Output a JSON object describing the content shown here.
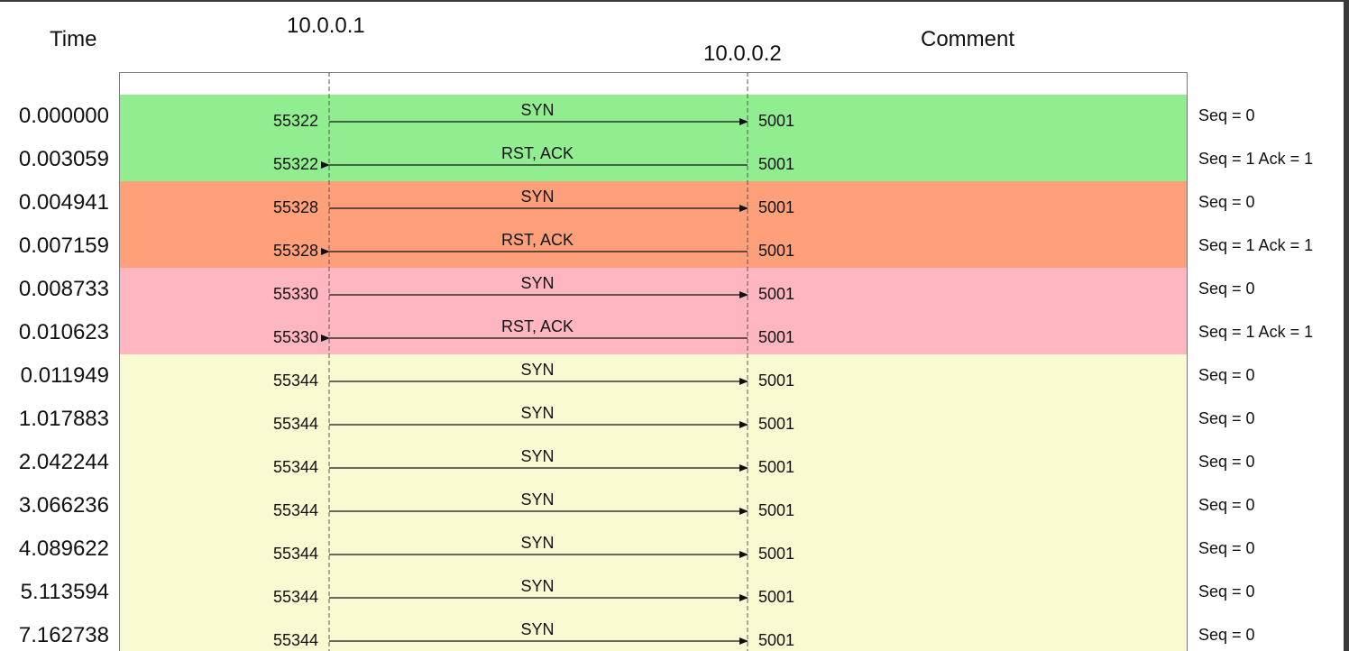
{
  "header": {
    "time_label": "Time",
    "host_a": "10.0.0.1",
    "host_b": "10.0.0.2",
    "comment_label": "Comment"
  },
  "colors": {
    "group_green": "#90ee90",
    "group_orange": "#ffa07a",
    "group_pink": "#ffb6c1",
    "group_yellow": "#fafad2"
  },
  "groups": [
    {
      "color": "#90ee90",
      "first_row": 0,
      "row_count": 2
    },
    {
      "color": "#ffa07a",
      "first_row": 2,
      "row_count": 2
    },
    {
      "color": "#ffb6c1",
      "first_row": 4,
      "row_count": 2
    },
    {
      "color": "#fafad2",
      "first_row": 6,
      "row_count": 7
    }
  ],
  "rows": [
    {
      "time": "0.000000",
      "src_port": "55322",
      "dst_port": "5001",
      "flags": "SYN",
      "direction": "right",
      "comment": "Seq = 0"
    },
    {
      "time": "0.003059",
      "src_port": "55322",
      "dst_port": "5001",
      "flags": "RST, ACK",
      "direction": "left",
      "comment": "Seq = 1 Ack = 1"
    },
    {
      "time": "0.004941",
      "src_port": "55328",
      "dst_port": "5001",
      "flags": "SYN",
      "direction": "right",
      "comment": "Seq = 0"
    },
    {
      "time": "0.007159",
      "src_port": "55328",
      "dst_port": "5001",
      "flags": "RST, ACK",
      "direction": "left",
      "comment": "Seq = 1 Ack = 1"
    },
    {
      "time": "0.008733",
      "src_port": "55330",
      "dst_port": "5001",
      "flags": "SYN",
      "direction": "right",
      "comment": "Seq = 0"
    },
    {
      "time": "0.010623",
      "src_port": "55330",
      "dst_port": "5001",
      "flags": "RST, ACK",
      "direction": "left",
      "comment": "Seq = 1 Ack = 1"
    },
    {
      "time": "0.011949",
      "src_port": "55344",
      "dst_port": "5001",
      "flags": "SYN",
      "direction": "right",
      "comment": "Seq = 0"
    },
    {
      "time": "1.017883",
      "src_port": "55344",
      "dst_port": "5001",
      "flags": "SYN",
      "direction": "right",
      "comment": "Seq = 0"
    },
    {
      "time": "2.042244",
      "src_port": "55344",
      "dst_port": "5001",
      "flags": "SYN",
      "direction": "right",
      "comment": "Seq = 0"
    },
    {
      "time": "3.066236",
      "src_port": "55344",
      "dst_port": "5001",
      "flags": "SYN",
      "direction": "right",
      "comment": "Seq = 0"
    },
    {
      "time": "4.089622",
      "src_port": "55344",
      "dst_port": "5001",
      "flags": "SYN",
      "direction": "right",
      "comment": "Seq = 0"
    },
    {
      "time": "5.113594",
      "src_port": "55344",
      "dst_port": "5001",
      "flags": "SYN",
      "direction": "right",
      "comment": "Seq = 0"
    },
    {
      "time": "7.162738",
      "src_port": "55344",
      "dst_port": "5001",
      "flags": "SYN",
      "direction": "right",
      "comment": "Seq = 0"
    }
  ]
}
